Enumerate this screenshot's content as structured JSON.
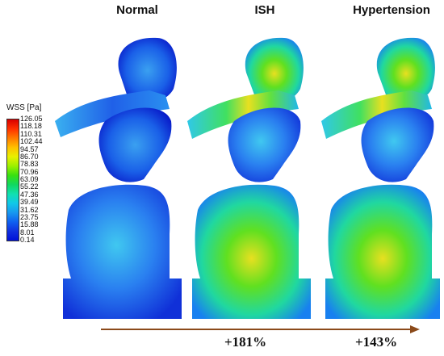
{
  "columns": [
    "Normal",
    "ISH",
    "Hypertension"
  ],
  "legend": {
    "title": "WSS [Pa]",
    "labels": [
      "126.05",
      "118.18",
      "110.31",
      "102.44",
      "94.57",
      "86.70",
      "78.83",
      "70.96",
      "63.09",
      "55.22",
      "47.36",
      "39.49",
      "31.62",
      "23.75",
      "15.88",
      "8.01",
      "0.14"
    ],
    "colors": [
      "#d80000",
      "#ff3000",
      "#ff7a00",
      "#ffc000",
      "#e8f000",
      "#9cf000",
      "#38e010",
      "#10d860",
      "#10e0b0",
      "#10c8e8",
      "#1898f0",
      "#1060f0",
      "#1030e0",
      "#0010d8"
    ]
  },
  "arrow": {
    "color": "#8b4a1a"
  },
  "increase": {
    "ish": "+181%",
    "hypertension": "+143%"
  }
}
